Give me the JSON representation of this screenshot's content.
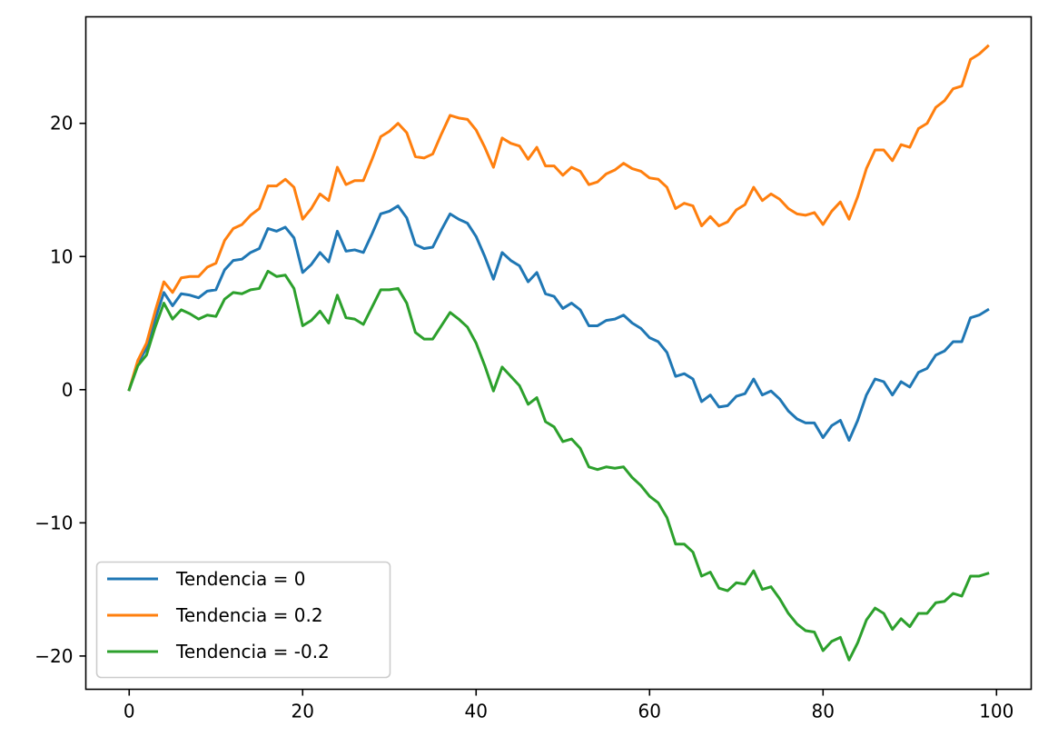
{
  "chart_data": {
    "type": "line",
    "title": "",
    "xlabel": "",
    "ylabel": "",
    "xlim": [
      -5,
      104
    ],
    "ylim": [
      -22.5,
      28.0
    ],
    "xticks": [
      0,
      20,
      40,
      60,
      80,
      100
    ],
    "yticks": [
      -20,
      -10,
      0,
      10,
      20
    ],
    "xtick_labels": [
      "0",
      "20",
      "40",
      "60",
      "80",
      "100"
    ],
    "ytick_labels": [
      "−20",
      "−10",
      "0",
      "10",
      "20"
    ],
    "grid": false,
    "legend_position": "lower-left",
    "series": [
      {
        "name": "Tendencia = 0",
        "color": "#1f77b4",
        "values": [
          0.0,
          2.0,
          3.1,
          5.3,
          7.3,
          6.3,
          7.2,
          7.1,
          6.9,
          7.4,
          7.5,
          9.0,
          9.7,
          9.8,
          10.3,
          10.6,
          12.1,
          11.9,
          12.2,
          11.4,
          8.8,
          9.4,
          10.3,
          9.6,
          11.9,
          10.4,
          10.5,
          10.3,
          11.7,
          13.2,
          13.4,
          13.8,
          12.9,
          10.9,
          10.6,
          10.7,
          12.0,
          13.2,
          12.8,
          12.5,
          11.5,
          10.0,
          8.3,
          10.3,
          9.7,
          9.3,
          8.1,
          8.8,
          7.2,
          7.0,
          6.1,
          6.5,
          6.0,
          4.8,
          4.8,
          5.2,
          5.3,
          5.6,
          5.0,
          4.6,
          3.9,
          3.6,
          2.8,
          1.0,
          1.2,
          0.8,
          -0.9,
          -0.4,
          -1.3,
          -1.2,
          -0.5,
          -0.3,
          0.8,
          -0.4,
          -0.1,
          -0.7,
          -1.6,
          -2.2,
          -2.5,
          -2.5,
          -3.6,
          -2.7,
          -2.3,
          -3.8,
          -2.3,
          -0.4,
          0.8,
          0.6,
          -0.4,
          0.6,
          0.2,
          1.3,
          1.6,
          2.6,
          2.9,
          3.6,
          3.6,
          5.4,
          5.6,
          6.0
        ]
      },
      {
        "name": "Tendencia = 0.2",
        "color": "#ff7f0e",
        "values": [
          0.0,
          2.2,
          3.5,
          5.9,
          8.1,
          7.3,
          8.4,
          8.5,
          8.5,
          9.2,
          9.5,
          11.2,
          12.1,
          12.4,
          13.1,
          13.6,
          15.3,
          15.3,
          15.8,
          15.2,
          12.8,
          13.6,
          14.7,
          14.2,
          16.7,
          15.4,
          15.7,
          15.7,
          17.3,
          19.0,
          19.4,
          20.0,
          19.3,
          17.5,
          17.4,
          17.7,
          19.2,
          20.6,
          20.4,
          20.3,
          19.5,
          18.2,
          16.7,
          18.9,
          18.5,
          18.3,
          17.3,
          18.2,
          16.8,
          16.8,
          16.1,
          16.7,
          16.4,
          15.4,
          15.6,
          16.2,
          16.5,
          17.0,
          16.6,
          16.4,
          15.9,
          15.8,
          15.2,
          13.6,
          14.0,
          13.8,
          12.3,
          13.0,
          12.3,
          12.6,
          13.5,
          13.9,
          15.2,
          14.2,
          14.7,
          14.3,
          13.6,
          13.2,
          13.1,
          13.3,
          12.4,
          13.4,
          14.1,
          12.8,
          14.5,
          16.6,
          18.0,
          18.0,
          17.2,
          18.4,
          18.2,
          19.6,
          20.0,
          21.2,
          21.7,
          22.6,
          22.8,
          24.8,
          25.2,
          25.8
        ]
      },
      {
        "name": "Tendencia = -0.2",
        "color": "#2ca02c",
        "values": [
          0.0,
          1.8,
          2.6,
          4.7,
          6.5,
          5.3,
          6.0,
          5.7,
          5.3,
          5.6,
          5.5,
          6.8,
          7.3,
          7.2,
          7.5,
          7.6,
          8.9,
          8.5,
          8.6,
          7.6,
          4.8,
          5.2,
          5.9,
          5.0,
          7.1,
          5.4,
          5.3,
          4.9,
          6.2,
          7.5,
          7.5,
          7.6,
          6.5,
          4.3,
          3.8,
          3.8,
          4.8,
          5.8,
          5.3,
          4.7,
          3.5,
          1.8,
          -0.1,
          1.7,
          1.0,
          0.3,
          -1.1,
          -0.6,
          -2.4,
          -2.8,
          -3.9,
          -3.7,
          -4.4,
          -5.8,
          -6.0,
          -5.8,
          -5.9,
          -5.8,
          -6.6,
          -7.2,
          -8.0,
          -8.5,
          -9.6,
          -11.6,
          -11.6,
          -12.2,
          -14.0,
          -13.7,
          -14.9,
          -15.1,
          -14.5,
          -14.6,
          -13.6,
          -15.0,
          -14.8,
          -15.7,
          -16.8,
          -17.6,
          -18.1,
          -18.2,
          -19.6,
          -18.9,
          -18.6,
          -20.3,
          -19.0,
          -17.3,
          -16.4,
          -16.8,
          -18.0,
          -17.2,
          -17.8,
          -16.8,
          -16.8,
          -16.0,
          -15.9,
          -15.3,
          -15.5,
          -14.0,
          -14.0,
          -13.8
        ]
      }
    ]
  }
}
